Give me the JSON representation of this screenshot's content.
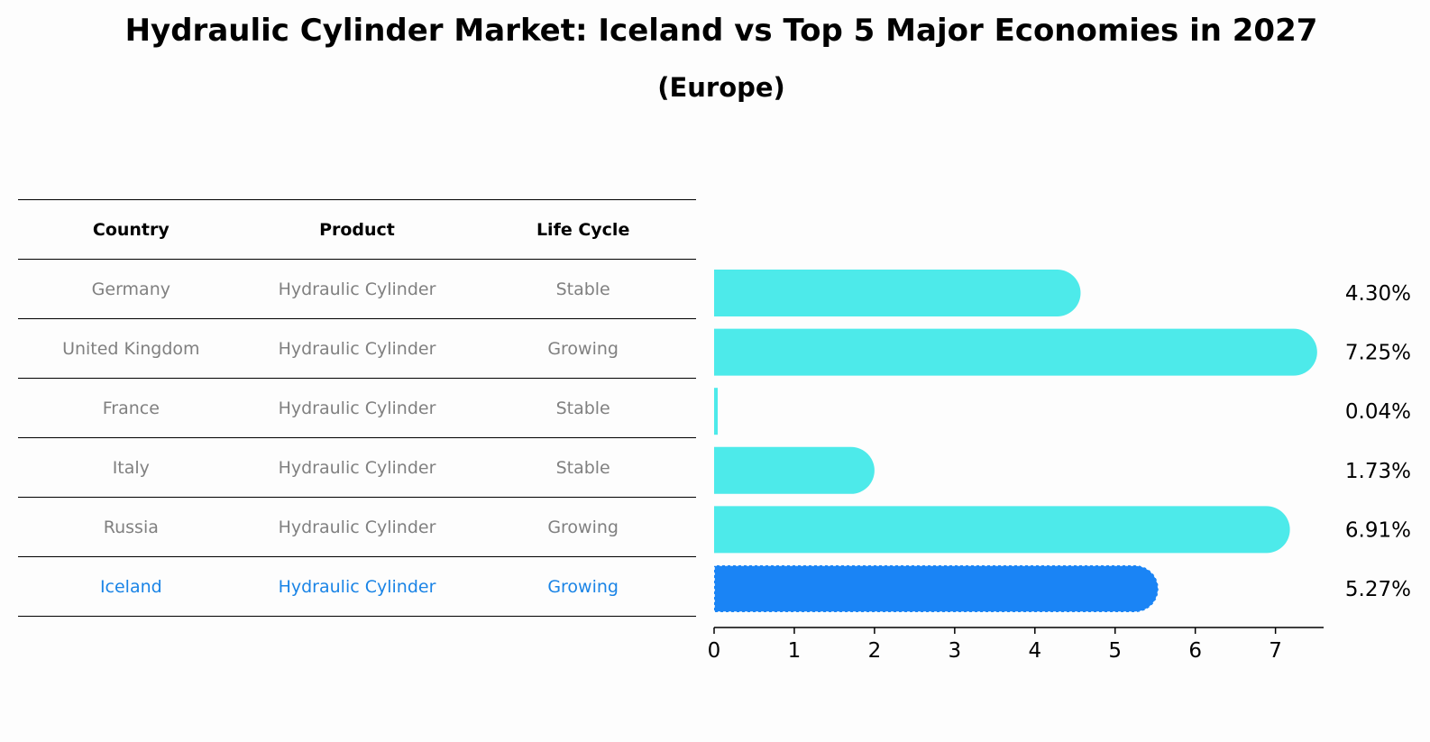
{
  "title": "Hydraulic Cylinder Market: Iceland vs Top 5 Major Economies in 2027",
  "subtitle": "(Europe)",
  "table": {
    "headers": [
      "Country",
      "Product",
      "Life Cycle"
    ],
    "rows": [
      [
        "Germany",
        "Hydraulic Cylinder",
        "Stable"
      ],
      [
        "United Kingdom",
        "Hydraulic Cylinder",
        "Growing"
      ],
      [
        "France",
        "Hydraulic Cylinder",
        "Stable"
      ],
      [
        "Italy",
        "Hydraulic Cylinder",
        "Stable"
      ],
      [
        "Russia",
        "Hydraulic Cylinder",
        "Growing"
      ],
      [
        "Iceland",
        "Hydraulic Cylinder",
        "Growing"
      ]
    ],
    "highlight_row": 5
  },
  "colors": {
    "bar": "#4deaea",
    "highlight_bar": "#1a84f5",
    "highlight_text": "#1a84e6",
    "muted_text": "#808080"
  },
  "chart_data": {
    "type": "bar",
    "orientation": "horizontal",
    "categories": [
      "Germany",
      "United Kingdom",
      "France",
      "Italy",
      "Russia",
      "Iceland"
    ],
    "values": [
      4.3,
      7.25,
      0.04,
      1.73,
      6.91,
      5.27
    ],
    "value_labels": [
      "4.30%",
      "7.25%",
      "0.04%",
      "1.73%",
      "6.91%",
      "5.27%"
    ],
    "highlight_index": 5,
    "xlim": [
      0,
      7.6
    ],
    "xticks": [
      0,
      1,
      2,
      3,
      4,
      5,
      6,
      7
    ],
    "grid": false
  }
}
